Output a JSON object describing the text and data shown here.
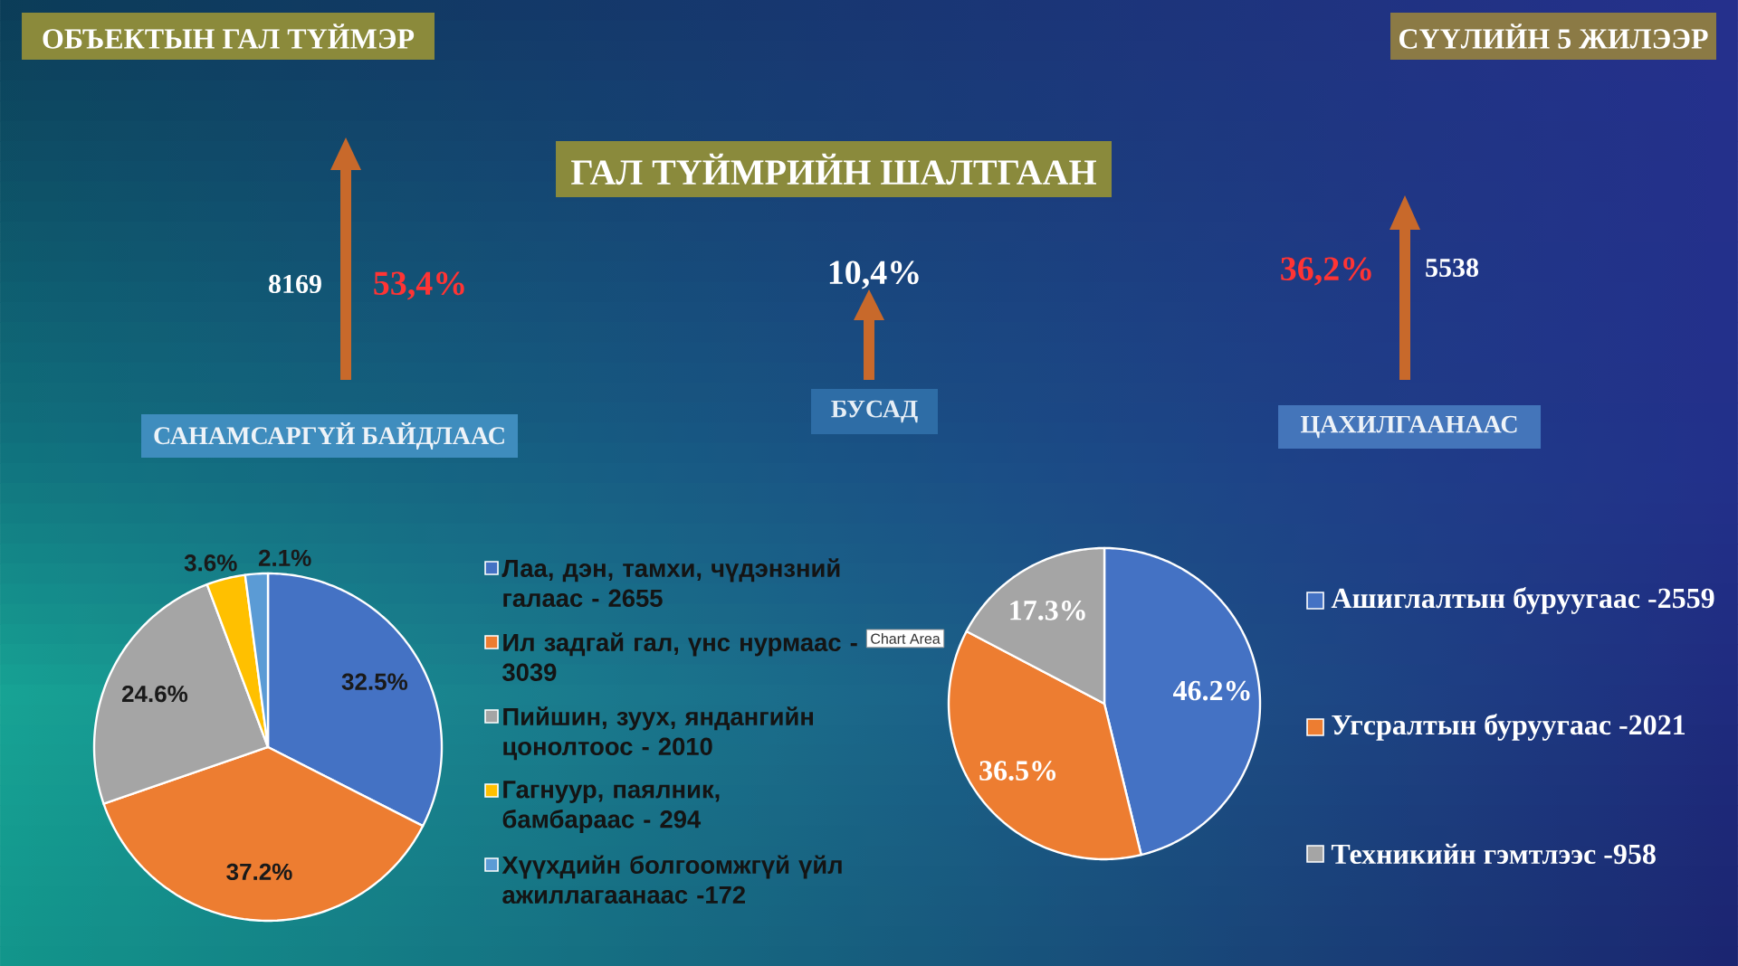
{
  "chart_data": [
    {
      "type": "other",
      "title": "ГАЛ ТҮЙМРИЙН ШАЛТГААН",
      "annotations": [
        "ОБЪЕКТЫН ГАЛ ТҮЙМЭР",
        "СҮҮЛИЙН 5 ЖИЛЭЭР",
        "10,4%",
        "БУСАД"
      ]
    },
    {
      "type": "pie",
      "title": "САНАМСАРГҮЙ БАЙДЛААС",
      "categories": [
        "Лаа, дэн, тамхи, чүдэнзний галаас - 2655",
        "Ил задгай гал, үнс нурмаас - 3039",
        "Пийшин, зуух, яндангийн цонолтоос - 2010",
        "Гагнуур, паялник, бамбараас - 294",
        "Хүүхдийн болгоомжгүй үйл ажиллагаанаас -172"
      ],
      "values": [
        32.5,
        37.2,
        24.6,
        3.6,
        2.1
      ],
      "value_labels": [
        "32.5%",
        "37.2%",
        "24.6%",
        "3.6%",
        "2.1%"
      ],
      "colors": [
        "#4472c4",
        "#ed7d31",
        "#a5a5a5",
        "#ffc000",
        "#5b9bd5"
      ],
      "legend": "right",
      "annotations": [
        "8169",
        "53,4%",
        "Chart Area"
      ]
    },
    {
      "type": "pie",
      "title": "ЦАХИЛГААНААС",
      "categories": [
        "Ашиглалтын буруугаас -2559",
        "Угсралтын буруугаас -2021",
        "Техникийн гэмтлээс -958"
      ],
      "values": [
        46.2,
        36.5,
        17.3
      ],
      "value_labels": [
        "46.2%",
        "36.5%",
        "17.3%"
      ],
      "colors": [
        "#4472c4",
        "#ed7d31",
        "#a5a5a5"
      ],
      "legend": "right",
      "annotations": [
        "36,2%",
        "5538"
      ]
    }
  ]
}
